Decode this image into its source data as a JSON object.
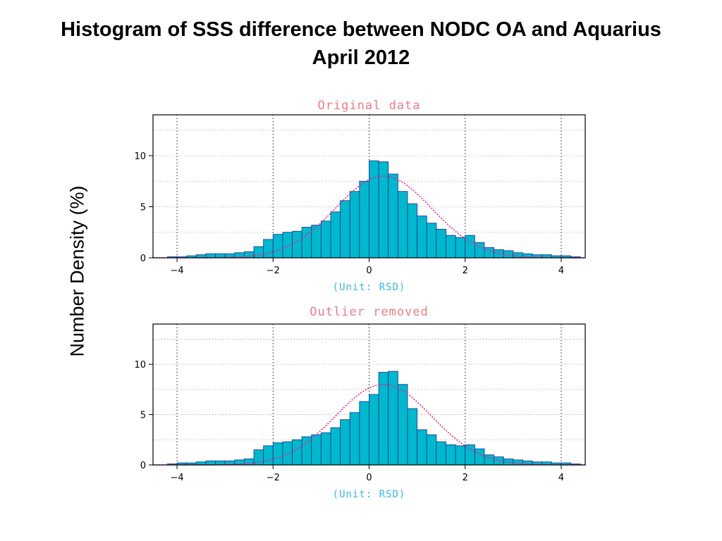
{
  "slide": {
    "title_line1": "Histogram of SSS difference between NODC OA and Aquarius",
    "title_line2": "April 2012",
    "ylabel": "Number Density (%)"
  },
  "colors": {
    "bar_fill": "#00b8cc",
    "bar_edge": "#1a3fa0",
    "fit_curve": "#e8238c",
    "panel_title": "#f07a84",
    "unit_label": "#36b8e6"
  },
  "chart_data": [
    {
      "type": "bar",
      "title": "Original data",
      "xlabel": "(Unit: RSD)",
      "ylabel": "Number Density (%)",
      "xlim": [
        -4.5,
        4.5
      ],
      "ylim": [
        0,
        14
      ],
      "xticks": [
        -4,
        -2,
        0,
        2,
        4
      ],
      "yticks": [
        0,
        5,
        10
      ],
      "grid": true,
      "bin_width": 0.2,
      "bin_centers": [
        -4.1,
        -3.9,
        -3.7,
        -3.5,
        -3.3,
        -3.1,
        -2.9,
        -2.7,
        -2.5,
        -2.3,
        -2.1,
        -1.9,
        -1.7,
        -1.5,
        -1.3,
        -1.1,
        -0.9,
        -0.7,
        -0.5,
        -0.3,
        -0.1,
        0.1,
        0.3,
        0.5,
        0.7,
        0.9,
        1.1,
        1.3,
        1.5,
        1.7,
        1.9,
        2.1,
        2.3,
        2.5,
        2.7,
        2.9,
        3.1,
        3.3,
        3.5,
        3.7,
        3.9,
        4.1,
        4.3
      ],
      "values": [
        0.1,
        0.1,
        0.2,
        0.3,
        0.4,
        0.4,
        0.4,
        0.5,
        0.6,
        1.1,
        1.8,
        2.3,
        2.5,
        2.6,
        3.0,
        3.2,
        3.6,
        4.5,
        5.6,
        6.5,
        7.5,
        9.5,
        9.4,
        8.2,
        6.5,
        5.3,
        4.1,
        3.4,
        2.8,
        2.2,
        2.0,
        2.2,
        1.5,
        1.0,
        0.8,
        0.7,
        0.5,
        0.4,
        0.3,
        0.3,
        0.2,
        0.2,
        0.1
      ],
      "fit_curve": {
        "type": "gaussian",
        "mean": 0.3,
        "sd": 1.0,
        "peak": 8.0
      }
    },
    {
      "type": "bar",
      "title": "Outlier removed",
      "xlabel": "(Unit: RSD)",
      "ylabel": "Number Density (%)",
      "xlim": [
        -4.5,
        4.5
      ],
      "ylim": [
        0,
        14
      ],
      "xticks": [
        -4,
        -2,
        0,
        2,
        4
      ],
      "yticks": [
        0,
        5,
        10
      ],
      "grid": true,
      "bin_width": 0.2,
      "bin_centers": [
        -4.1,
        -3.9,
        -3.7,
        -3.5,
        -3.3,
        -3.1,
        -2.9,
        -2.7,
        -2.5,
        -2.3,
        -2.1,
        -1.9,
        -1.7,
        -1.5,
        -1.3,
        -1.1,
        -0.9,
        -0.7,
        -0.5,
        -0.3,
        -0.1,
        0.1,
        0.3,
        0.5,
        0.7,
        0.9,
        1.1,
        1.3,
        1.5,
        1.7,
        1.9,
        2.1,
        2.3,
        2.5,
        2.7,
        2.9,
        3.1,
        3.3,
        3.5,
        3.7,
        3.9,
        4.1,
        4.3
      ],
      "values": [
        0.1,
        0.2,
        0.2,
        0.3,
        0.4,
        0.4,
        0.4,
        0.5,
        0.6,
        1.5,
        1.9,
        2.2,
        2.3,
        2.5,
        2.8,
        3.0,
        3.2,
        3.7,
        4.5,
        5.2,
        6.3,
        7.0,
        9.2,
        9.3,
        8.0,
        5.6,
        3.5,
        3.0,
        2.3,
        2.0,
        1.9,
        2.0,
        1.6,
        1.0,
        0.8,
        0.6,
        0.5,
        0.4,
        0.3,
        0.3,
        0.2,
        0.2,
        0.1
      ],
      "fit_curve": {
        "type": "gaussian",
        "mean": 0.3,
        "sd": 1.0,
        "peak": 8.0
      }
    }
  ]
}
